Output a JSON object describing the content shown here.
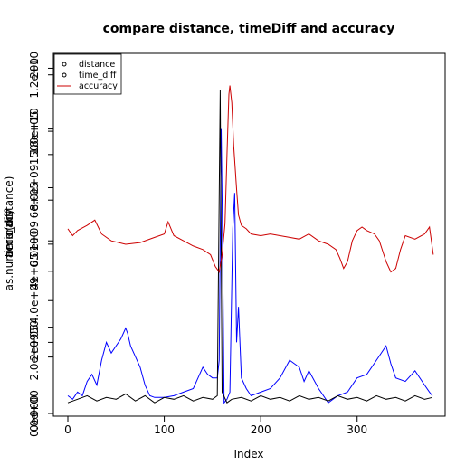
{
  "chart_data": {
    "type": "line",
    "title": "compare distance, timeDiff and accuracy",
    "xlabel": "Index",
    "ylabels": [
      "as.numeric(distance)",
      "time_diff",
      "accuracy"
    ],
    "x_ticks": [
      "0",
      "100",
      "200",
      "300"
    ],
    "x_tick_values": [
      0,
      100,
      200,
      300
    ],
    "xlim": [
      0,
      380
    ],
    "y_axes": [
      {
        "name": "as.numeric(distance)",
        "ticks": [
          "0.0e+00",
          "2.0e+09",
          "4.0e+09",
          "6.0e+09",
          "8.0e+09",
          "1.0e+10",
          "1.2e+10"
        ],
        "tick_values": [
          0,
          2000000000,
          4000000000,
          6000000000,
          8000000000,
          10000000000,
          12000000000
        ],
        "ylim": [
          0,
          12600000000
        ]
      },
      {
        "name": "time_diff",
        "ticks": [
          "0e+00",
          "2e+05",
          "4e+05",
          "6e+05",
          "8e+05"
        ],
        "tick_values": [
          0,
          200000,
          400000,
          600000,
          800000
        ],
        "ylim": [
          0,
          1000000
        ]
      },
      {
        "name": "accuracy",
        "ticks": [
          "0",
          "50",
          "100",
          "150",
          "200"
        ],
        "tick_values": [
          0,
          50,
          100,
          150,
          200
        ],
        "ylim": [
          0,
          206
        ]
      }
    ],
    "series": [
      {
        "name": "distance",
        "color": "#0000ff",
        "points": [
          [
            0,
            0.5
          ],
          [
            5,
            0.4
          ],
          [
            10,
            0.6
          ],
          [
            15,
            0.5
          ],
          [
            20,
            0.9
          ],
          [
            25,
            1.1
          ],
          [
            30,
            0.8
          ],
          [
            35,
            1.5
          ],
          [
            40,
            2.0
          ],
          [
            45,
            1.7
          ],
          [
            50,
            1.9
          ],
          [
            55,
            2.1
          ],
          [
            60,
            2.4
          ],
          [
            62,
            2.25
          ],
          [
            65,
            1.9
          ],
          [
            70,
            1.6
          ],
          [
            75,
            1.3
          ],
          [
            80,
            0.8
          ],
          [
            85,
            0.5
          ],
          [
            90,
            0.45
          ],
          [
            100,
            0.45
          ],
          [
            110,
            0.5
          ],
          [
            120,
            0.6
          ],
          [
            130,
            0.7
          ],
          [
            135,
            1.0
          ],
          [
            140,
            1.3
          ],
          [
            145,
            1.1
          ],
          [
            150,
            1.0
          ],
          [
            155,
            1.0
          ],
          [
            157,
            1.5
          ],
          [
            159,
            8.0
          ],
          [
            160,
            6.0
          ],
          [
            162,
            0.3
          ],
          [
            165,
            0.4
          ],
          [
            168,
            0.6
          ],
          [
            171,
            5.2
          ],
          [
            173,
            6.2
          ],
          [
            175,
            2.0
          ],
          [
            177,
            3.0
          ],
          [
            180,
            1.0
          ],
          [
            185,
            0.7
          ],
          [
            190,
            0.5
          ],
          [
            200,
            0.6
          ],
          [
            210,
            0.7
          ],
          [
            220,
            1.0
          ],
          [
            230,
            1.5
          ],
          [
            240,
            1.3
          ],
          [
            245,
            0.9
          ],
          [
            250,
            1.2
          ],
          [
            260,
            0.7
          ],
          [
            270,
            0.3
          ],
          [
            280,
            0.5
          ],
          [
            290,
            0.6
          ],
          [
            300,
            1.0
          ],
          [
            310,
            1.1
          ],
          [
            320,
            1.5
          ],
          [
            330,
            1.9
          ],
          [
            335,
            1.4
          ],
          [
            340,
            1.0
          ],
          [
            350,
            0.9
          ],
          [
            360,
            1.2
          ],
          [
            370,
            0.8
          ],
          [
            375,
            0.6
          ],
          [
            378,
            0.5
          ]
        ]
      },
      {
        "name": "time_diff",
        "color": "#000000",
        "points": [
          [
            0,
            30000
          ],
          [
            10,
            40000
          ],
          [
            20,
            50000
          ],
          [
            30,
            35000
          ],
          [
            40,
            45000
          ],
          [
            50,
            40000
          ],
          [
            60,
            55000
          ],
          [
            70,
            35000
          ],
          [
            80,
            50000
          ],
          [
            90,
            30000
          ],
          [
            100,
            45000
          ],
          [
            110,
            40000
          ],
          [
            120,
            50000
          ],
          [
            130,
            35000
          ],
          [
            140,
            45000
          ],
          [
            150,
            40000
          ],
          [
            155,
            50000
          ],
          [
            158,
            910000
          ],
          [
            160,
            60000
          ],
          [
            165,
            30000
          ],
          [
            170,
            40000
          ],
          [
            180,
            45000
          ],
          [
            190,
            35000
          ],
          [
            200,
            50000
          ],
          [
            210,
            40000
          ],
          [
            220,
            45000
          ],
          [
            230,
            35000
          ],
          [
            240,
            50000
          ],
          [
            250,
            40000
          ],
          [
            260,
            45000
          ],
          [
            270,
            35000
          ],
          [
            280,
            50000
          ],
          [
            290,
            40000
          ],
          [
            300,
            45000
          ],
          [
            310,
            35000
          ],
          [
            320,
            50000
          ],
          [
            330,
            40000
          ],
          [
            340,
            45000
          ],
          [
            350,
            35000
          ],
          [
            360,
            50000
          ],
          [
            370,
            40000
          ],
          [
            378,
            45000
          ]
        ]
      },
      {
        "name": "accuracy",
        "color": "#cc0000",
        "points": [
          [
            0,
            107
          ],
          [
            5,
            103
          ],
          [
            10,
            106
          ],
          [
            20,
            109
          ],
          [
            28,
            112
          ],
          [
            35,
            104
          ],
          [
            45,
            100
          ],
          [
            60,
            98
          ],
          [
            75,
            99
          ],
          [
            90,
            102
          ],
          [
            100,
            104
          ],
          [
            104,
            111
          ],
          [
            110,
            103
          ],
          [
            120,
            100
          ],
          [
            130,
            97
          ],
          [
            140,
            95
          ],
          [
            148,
            92
          ],
          [
            153,
            85
          ],
          [
            157,
            82
          ],
          [
            160,
            92
          ],
          [
            163,
            110
          ],
          [
            165,
            150
          ],
          [
            167,
            185
          ],
          [
            168,
            190
          ],
          [
            170,
            180
          ],
          [
            172,
            155
          ],
          [
            175,
            130
          ],
          [
            177,
            115
          ],
          [
            180,
            109
          ],
          [
            185,
            107
          ],
          [
            190,
            104
          ],
          [
            200,
            103
          ],
          [
            210,
            104
          ],
          [
            230,
            102
          ],
          [
            240,
            101
          ],
          [
            250,
            104
          ],
          [
            260,
            100
          ],
          [
            270,
            98
          ],
          [
            278,
            95
          ],
          [
            282,
            90
          ],
          [
            286,
            84
          ],
          [
            290,
            88
          ],
          [
            295,
            100
          ],
          [
            300,
            106
          ],
          [
            305,
            108
          ],
          [
            310,
            106
          ],
          [
            318,
            104
          ],
          [
            323,
            100
          ],
          [
            330,
            88
          ],
          [
            335,
            82
          ],
          [
            340,
            84
          ],
          [
            345,
            95
          ],
          [
            350,
            103
          ],
          [
            360,
            101
          ],
          [
            370,
            104
          ],
          [
            375,
            108
          ],
          [
            379,
            92
          ]
        ]
      }
    ],
    "legend": {
      "position": "top-left",
      "entries": [
        {
          "label": "distance",
          "symbol": "circle",
          "color": "#000000"
        },
        {
          "label": "time_diff",
          "symbol": "circle",
          "color": "#000000"
        },
        {
          "label": "accuracy",
          "symbol": "line",
          "color": "#cc0000"
        }
      ]
    }
  }
}
